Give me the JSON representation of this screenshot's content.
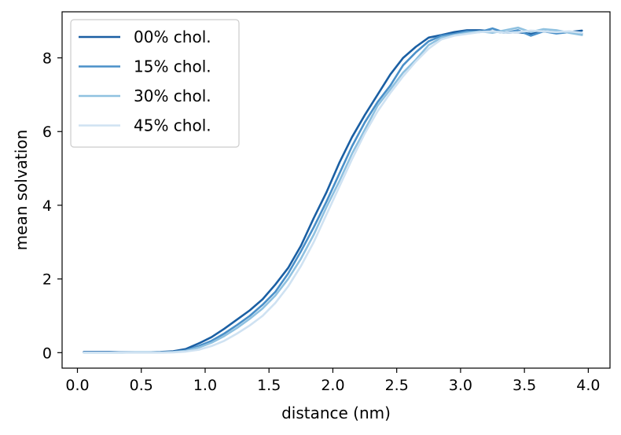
{
  "chart_data": {
    "type": "line",
    "title": "",
    "xlabel": "distance (nm)",
    "ylabel": "mean solvation",
    "xlim": [
      -0.12,
      4.17
    ],
    "ylim": [
      -0.42,
      9.25
    ],
    "xticks": [
      0.0,
      0.5,
      1.0,
      1.5,
      2.0,
      2.5,
      3.0,
      3.5,
      4.0
    ],
    "xtick_labels": [
      "0.0",
      "0.5",
      "1.0",
      "1.5",
      "2.0",
      "2.5",
      "3.0",
      "3.5",
      "4.0"
    ],
    "yticks": [
      0,
      2,
      4,
      6,
      8
    ],
    "ytick_labels": [
      "0",
      "2",
      "4",
      "6",
      "8"
    ],
    "grid": false,
    "legend_position": "top-left",
    "x": [
      0.05,
      0.15,
      0.25,
      0.35,
      0.45,
      0.55,
      0.65,
      0.75,
      0.85,
      0.95,
      1.05,
      1.15,
      1.25,
      1.35,
      1.45,
      1.55,
      1.65,
      1.75,
      1.85,
      1.95,
      2.05,
      2.15,
      2.25,
      2.35,
      2.45,
      2.55,
      2.65,
      2.75,
      2.85,
      2.95,
      3.05,
      3.15,
      3.25,
      3.35,
      3.45,
      3.55,
      3.65,
      3.75,
      3.85,
      3.95
    ],
    "series": [
      {
        "name": "00% chol.",
        "color": "#1a5fa3",
        "values": [
          0.02,
          0.02,
          0.02,
          0.01,
          0.01,
          0.01,
          0.02,
          0.04,
          0.1,
          0.25,
          0.42,
          0.65,
          0.9,
          1.15,
          1.45,
          1.85,
          2.3,
          2.9,
          3.65,
          4.35,
          5.15,
          5.85,
          6.45,
          7.0,
          7.55,
          8.0,
          8.3,
          8.55,
          8.62,
          8.7,
          8.75,
          8.75,
          8.72,
          8.68,
          8.7,
          8.65,
          8.72,
          8.68,
          8.7,
          8.74
        ]
      },
      {
        "name": "15% chol.",
        "color": "#4a90c9",
        "values": [
          0.01,
          0.01,
          0.01,
          0.01,
          0.01,
          0.01,
          0.01,
          0.02,
          0.06,
          0.18,
          0.32,
          0.52,
          0.75,
          1.0,
          1.3,
          1.65,
          2.15,
          2.75,
          3.4,
          4.1,
          4.85,
          5.6,
          6.25,
          6.8,
          7.25,
          7.8,
          8.15,
          8.45,
          8.6,
          8.65,
          8.72,
          8.7,
          8.8,
          8.68,
          8.75,
          8.6,
          8.72,
          8.66,
          8.7,
          8.66
        ]
      },
      {
        "name": "30% chol.",
        "color": "#8fc1e0",
        "values": [
          0.0,
          0.0,
          0.0,
          0.0,
          0.01,
          0.01,
          0.01,
          0.02,
          0.05,
          0.14,
          0.27,
          0.45,
          0.67,
          0.92,
          1.2,
          1.55,
          2.0,
          2.55,
          3.2,
          3.95,
          4.65,
          5.4,
          6.05,
          6.7,
          7.15,
          7.6,
          7.95,
          8.35,
          8.55,
          8.62,
          8.68,
          8.72,
          8.68,
          8.75,
          8.82,
          8.7,
          8.78,
          8.75,
          8.68,
          8.62
        ]
      },
      {
        "name": "45% chol.",
        "color": "#cfe2f2",
        "values": [
          0.0,
          0.0,
          0.0,
          0.0,
          0.0,
          0.0,
          0.0,
          0.01,
          0.03,
          0.08,
          0.18,
          0.32,
          0.52,
          0.74,
          1.0,
          1.35,
          1.8,
          2.35,
          3.0,
          3.75,
          4.5,
          5.25,
          5.95,
          6.55,
          7.05,
          7.5,
          7.9,
          8.25,
          8.5,
          8.6,
          8.65,
          8.7,
          8.72,
          8.68,
          8.7,
          8.74,
          8.72,
          8.7,
          8.72,
          8.68
        ]
      }
    ]
  }
}
